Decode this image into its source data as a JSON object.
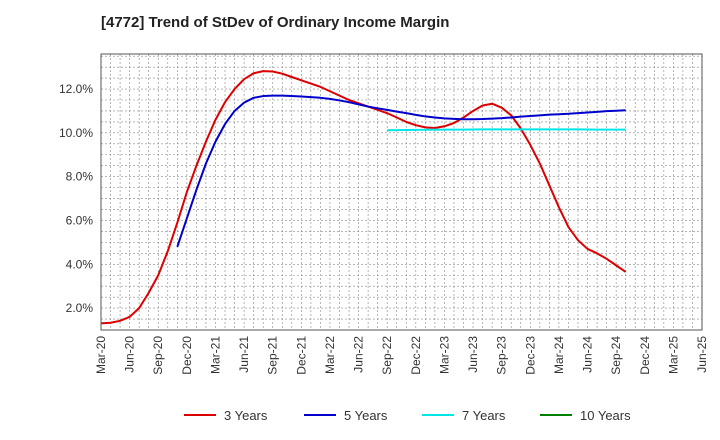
{
  "title": "[4772]  Trend of StDev of Ordinary Income Margin",
  "chart_data": {
    "type": "line",
    "title": "[4772]  Trend of StDev of Ordinary Income Margin",
    "xlabel": "",
    "ylabel": "",
    "x_tick_labels": [
      "Mar-20",
      "Jun-20",
      "Sep-20",
      "Dec-20",
      "Mar-21",
      "Jun-21",
      "Sep-21",
      "Dec-21",
      "Mar-22",
      "Jun-22",
      "Sep-22",
      "Dec-22",
      "Mar-23",
      "Jun-23",
      "Sep-23",
      "Dec-23",
      "Mar-24",
      "Jun-24",
      "Sep-24",
      "Dec-24",
      "Mar-25",
      "Jun-25"
    ],
    "y_tick_labels": [
      "2.0%",
      "4.0%",
      "6.0%",
      "8.0%",
      "10.0%",
      "12.0%"
    ],
    "y_ticks": [
      2,
      4,
      6,
      8,
      10,
      12
    ],
    "ylim": [
      1.0,
      13.6
    ],
    "x_range": [
      0,
      63
    ],
    "grid": true,
    "legend_position": "bottom",
    "series": [
      {
        "name": "3 Years",
        "color": "#dd0000",
        "points": [
          [
            0,
            1.3
          ],
          [
            1,
            1.33
          ],
          [
            2,
            1.42
          ],
          [
            3,
            1.6
          ],
          [
            4,
            2.0
          ],
          [
            5,
            2.7
          ],
          [
            6,
            3.5
          ],
          [
            7,
            4.6
          ],
          [
            8,
            5.9
          ],
          [
            9,
            7.3
          ],
          [
            10,
            8.5
          ],
          [
            11,
            9.6
          ],
          [
            12,
            10.6
          ],
          [
            13,
            11.4
          ],
          [
            14,
            12.0
          ],
          [
            15,
            12.45
          ],
          [
            16,
            12.72
          ],
          [
            17,
            12.82
          ],
          [
            18,
            12.8
          ],
          [
            19,
            12.7
          ],
          [
            20,
            12.55
          ],
          [
            21,
            12.4
          ],
          [
            22,
            12.25
          ],
          [
            23,
            12.1
          ],
          [
            24,
            11.9
          ],
          [
            25,
            11.7
          ],
          [
            26,
            11.5
          ],
          [
            27,
            11.35
          ],
          [
            28,
            11.2
          ],
          [
            29,
            11.05
          ],
          [
            30,
            10.9
          ],
          [
            31,
            10.7
          ],
          [
            32,
            10.5
          ],
          [
            33,
            10.35
          ],
          [
            34,
            10.25
          ],
          [
            35,
            10.22
          ],
          [
            36,
            10.3
          ],
          [
            37,
            10.45
          ],
          [
            38,
            10.7
          ],
          [
            39,
            11.0
          ],
          [
            40,
            11.25
          ],
          [
            41,
            11.33
          ],
          [
            42,
            11.15
          ],
          [
            43,
            10.8
          ],
          [
            44,
            10.2
          ],
          [
            45,
            9.45
          ],
          [
            46,
            8.6
          ],
          [
            47,
            7.6
          ],
          [
            48,
            6.6
          ],
          [
            49,
            5.7
          ],
          [
            50,
            5.1
          ],
          [
            51,
            4.7
          ],
          [
            52,
            4.5
          ],
          [
            53,
            4.25
          ],
          [
            54,
            3.95
          ],
          [
            55,
            3.65
          ]
        ]
      },
      {
        "name": "5 Years",
        "color": "#0000cc",
        "points": [
          [
            8,
            4.8
          ],
          [
            9,
            6.1
          ],
          [
            10,
            7.4
          ],
          [
            11,
            8.6
          ],
          [
            12,
            9.6
          ],
          [
            13,
            10.4
          ],
          [
            14,
            11.0
          ],
          [
            15,
            11.38
          ],
          [
            16,
            11.6
          ],
          [
            17,
            11.68
          ],
          [
            18,
            11.7
          ],
          [
            19,
            11.7
          ],
          [
            20,
            11.68
          ],
          [
            21,
            11.66
          ],
          [
            22,
            11.63
          ],
          [
            23,
            11.6
          ],
          [
            24,
            11.55
          ],
          [
            25,
            11.48
          ],
          [
            26,
            11.4
          ],
          [
            27,
            11.3
          ],
          [
            28,
            11.2
          ],
          [
            29,
            11.12
          ],
          [
            30,
            11.05
          ],
          [
            31,
            10.97
          ],
          [
            32,
            10.9
          ],
          [
            33,
            10.82
          ],
          [
            34,
            10.75
          ],
          [
            35,
            10.7
          ],
          [
            36,
            10.66
          ],
          [
            37,
            10.64
          ],
          [
            38,
            10.62
          ],
          [
            39,
            10.62
          ],
          [
            40,
            10.63
          ],
          [
            41,
            10.65
          ],
          [
            42,
            10.67
          ],
          [
            43,
            10.7
          ],
          [
            44,
            10.74
          ],
          [
            45,
            10.77
          ],
          [
            46,
            10.8
          ],
          [
            47,
            10.83
          ],
          [
            48,
            10.85
          ],
          [
            49,
            10.87
          ],
          [
            50,
            10.9
          ],
          [
            51,
            10.93
          ],
          [
            52,
            10.96
          ],
          [
            53,
            10.99
          ],
          [
            54,
            11.01
          ],
          [
            55,
            11.03
          ]
        ]
      },
      {
        "name": "7 Years",
        "color": "#00e6e6",
        "points": [
          [
            30,
            10.12
          ],
          [
            32,
            10.13
          ],
          [
            34,
            10.14
          ],
          [
            36,
            10.15
          ],
          [
            38,
            10.15
          ],
          [
            40,
            10.16
          ],
          [
            42,
            10.16
          ],
          [
            44,
            10.16
          ],
          [
            46,
            10.16
          ],
          [
            48,
            10.16
          ],
          [
            50,
            10.16
          ],
          [
            52,
            10.15
          ],
          [
            54,
            10.15
          ],
          [
            55,
            10.15
          ]
        ]
      },
      {
        "name": "10 Years",
        "color": "#008000",
        "points": []
      }
    ]
  }
}
